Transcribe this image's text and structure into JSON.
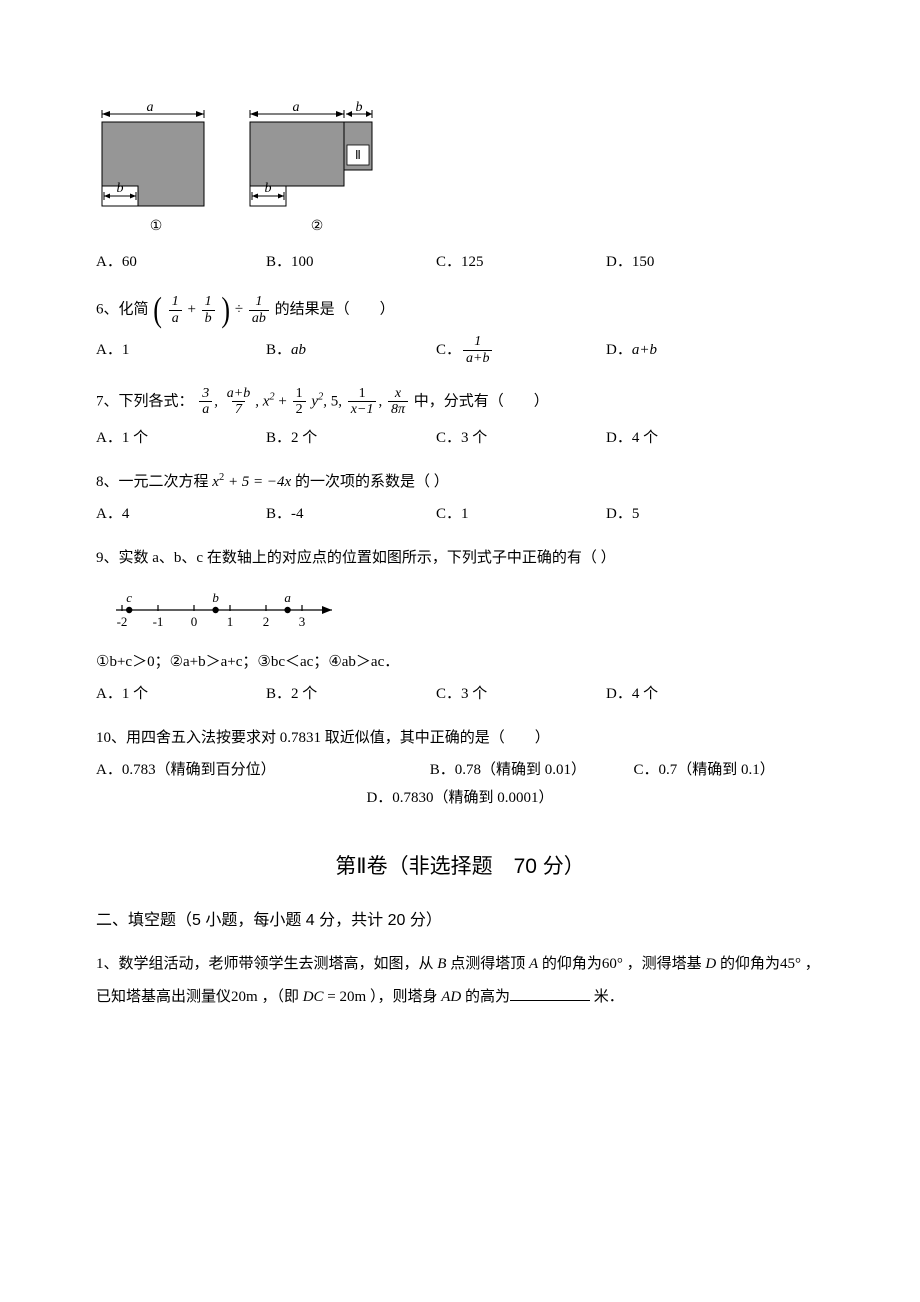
{
  "figures": {
    "fig1": {
      "a_label": "a",
      "b_label": "b",
      "caption": "①",
      "fill_color": "#969696",
      "stroke_color": "#000000",
      "bg_color": "#ffffff"
    },
    "fig2": {
      "a_label": "a",
      "b_label": "b",
      "II_label": "Ⅱ",
      "caption": "②",
      "fill_color": "#969696",
      "stroke_color": "#000000",
      "bg_color": "#ffffff"
    }
  },
  "q5_options": {
    "A": "A．60",
    "B": "B．100",
    "C": "C．125",
    "D": "D．150"
  },
  "q6": {
    "stem_prefix": "6、化简",
    "frac1_num": "1",
    "frac1_den": "a",
    "plus": "+",
    "frac2_num": "1",
    "frac2_den": "b",
    "div": "÷",
    "frac3_num": "1",
    "frac3_den": "ab",
    "stem_suffix": "的结果是（　　）",
    "options": {
      "A": "A．1",
      "B_pre": "B．",
      "B_expr": "ab",
      "C_pre": "C．",
      "C_num": "1",
      "C_den": "a+b",
      "D_pre": "D．",
      "D_expr": "a+b"
    }
  },
  "q7": {
    "stem_prefix": "7、下列各式：",
    "t1_num": "3",
    "t1_den": "a",
    "comma": ", ",
    "t2_num": "a+b",
    "t2_den": "7",
    "t3_pre": "x",
    "t3_sup1": "2",
    "t3_mid": " + ",
    "t3_f_num": "1",
    "t3_f_den": "2",
    "t3_y": "y",
    "t3_sup2": "2",
    "t4": "5",
    "t5_num": "1",
    "t5_den": "x−1",
    "t6_num": "x",
    "t6_den": "8π",
    "stem_suffix": "中，分式有（　　）",
    "options": {
      "A": "A．1 个",
      "B": "B．2 个",
      "C": "C．3 个",
      "D": "D．4 个"
    }
  },
  "q8": {
    "stem_prefix": "8、一元二次方程",
    "expr_1": "x",
    "sup1": "2",
    "expr_2": " + 5 = −4x",
    "stem_suffix": "的一次项的系数是（  ）",
    "options": {
      "A": "A．4",
      "B": "B．-4",
      "C": "C．1",
      "D": "D．5"
    }
  },
  "q9": {
    "stem": "9、实数 a、b、c 在数轴上的对应点的位置如图所示，下列式子中正确的有（  ）",
    "numberline": {
      "ticks": [
        -2,
        -1,
        0,
        1,
        2,
        3
      ],
      "labels": {
        "c": "c",
        "b": "b",
        "a": "a"
      },
      "c_pos": -1.8,
      "b_pos": 0.6,
      "a_pos": 2.6,
      "line_color": "#000000",
      "dot_color": "#000000",
      "font_color": "#000000"
    },
    "stmts": "①b+c＞0；②a+b＞a+c；③bc＜ac；④ab＞ac．",
    "options": {
      "A": "A．1 个",
      "B": "B．2 个",
      "C": "C．3 个",
      "D": "D．4 个"
    }
  },
  "q10": {
    "stem": "10、用四舍五入法按要求对 0.7831 取近似值，其中正确的是（　　）",
    "options": {
      "A": "A．0.783（精确到百分位）",
      "B": "B．0.78（精确到 0.01）",
      "C": "C．0.7（精确到 0.1）",
      "D": "D．0.7830（精确到 0.0001）"
    }
  },
  "section2_header": "第Ⅱ卷（非选择题　70 分）",
  "section2_sub": "二、填空题（5 小题，每小题 4 分，共计 20 分）",
  "fill_q1": {
    "pre": "1、数学组活动，老师带领学生去测塔高，如图，从 ",
    "B": "B",
    "mid1": " 点测得塔顶 ",
    "A": "A",
    "mid2": " 的仰角为",
    "angle60": "60°",
    "mid3": "，测得塔基 ",
    "D": "D",
    "mid4": " 的仰角为",
    "angle45": "45°",
    "mid5": "，已知塔基高出测量仪",
    "dist": "20m",
    "mid6": "，（即 ",
    "DC": "DC",
    "eq20": " = 20m",
    "mid7": " ），则塔身 ",
    "AD": "AD",
    "mid8": " 的高为",
    "suffix": "米．"
  }
}
